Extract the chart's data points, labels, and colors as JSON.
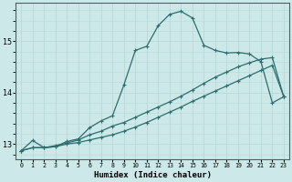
{
  "xlabel": "Humidex (Indice chaleur)",
  "ylabel": "",
  "bg_color": "#cce8e8",
  "grid_color": "#b8d8d8",
  "line_color": "#2d6e6e",
  "xlim": [
    -0.5,
    23.5
  ],
  "ylim": [
    12.7,
    15.75
  ],
  "yticks": [
    13,
    14,
    15
  ],
  "xticks": [
    0,
    1,
    2,
    3,
    4,
    5,
    6,
    7,
    8,
    9,
    10,
    11,
    12,
    13,
    14,
    15,
    16,
    17,
    18,
    19,
    20,
    21,
    22,
    23
  ],
  "line1_x": [
    0,
    1,
    2,
    3,
    4,
    5,
    6,
    7,
    8,
    9,
    10,
    11,
    12,
    13,
    14,
    15,
    16,
    17,
    18,
    19,
    20,
    21,
    22,
    23
  ],
  "line1_y": [
    12.87,
    13.07,
    12.93,
    12.95,
    13.05,
    13.1,
    13.32,
    13.45,
    13.55,
    14.15,
    14.82,
    14.9,
    15.3,
    15.52,
    15.58,
    15.45,
    14.92,
    14.82,
    14.77,
    14.78,
    14.75,
    14.6,
    13.8,
    13.92
  ],
  "line2_x": [
    0,
    1,
    2,
    3,
    4,
    5,
    6,
    7,
    8,
    9,
    10,
    11,
    12,
    13,
    14,
    15,
    16,
    17,
    18,
    19,
    20,
    21,
    22,
    23
  ],
  "line2_y": [
    12.87,
    12.93,
    12.93,
    12.97,
    13.02,
    13.08,
    13.18,
    13.25,
    13.35,
    13.42,
    13.52,
    13.62,
    13.72,
    13.82,
    13.93,
    14.05,
    14.18,
    14.3,
    14.4,
    14.5,
    14.58,
    14.65,
    14.68,
    13.92
  ],
  "line3_x": [
    0,
    1,
    2,
    3,
    4,
    5,
    6,
    7,
    8,
    9,
    10,
    11,
    12,
    13,
    14,
    15,
    16,
    17,
    18,
    19,
    20,
    21,
    22,
    23
  ],
  "line3_y": [
    12.87,
    12.93,
    12.93,
    12.95,
    13.0,
    13.03,
    13.08,
    13.13,
    13.18,
    13.25,
    13.33,
    13.42,
    13.52,
    13.62,
    13.72,
    13.83,
    13.93,
    14.03,
    14.13,
    14.23,
    14.33,
    14.43,
    14.53,
    13.92
  ],
  "xlabel_fontsize": 6.5,
  "ylabel_fontsize": 6.5,
  "tick_fontsize": 5.5,
  "label_fontsize": 6.5
}
